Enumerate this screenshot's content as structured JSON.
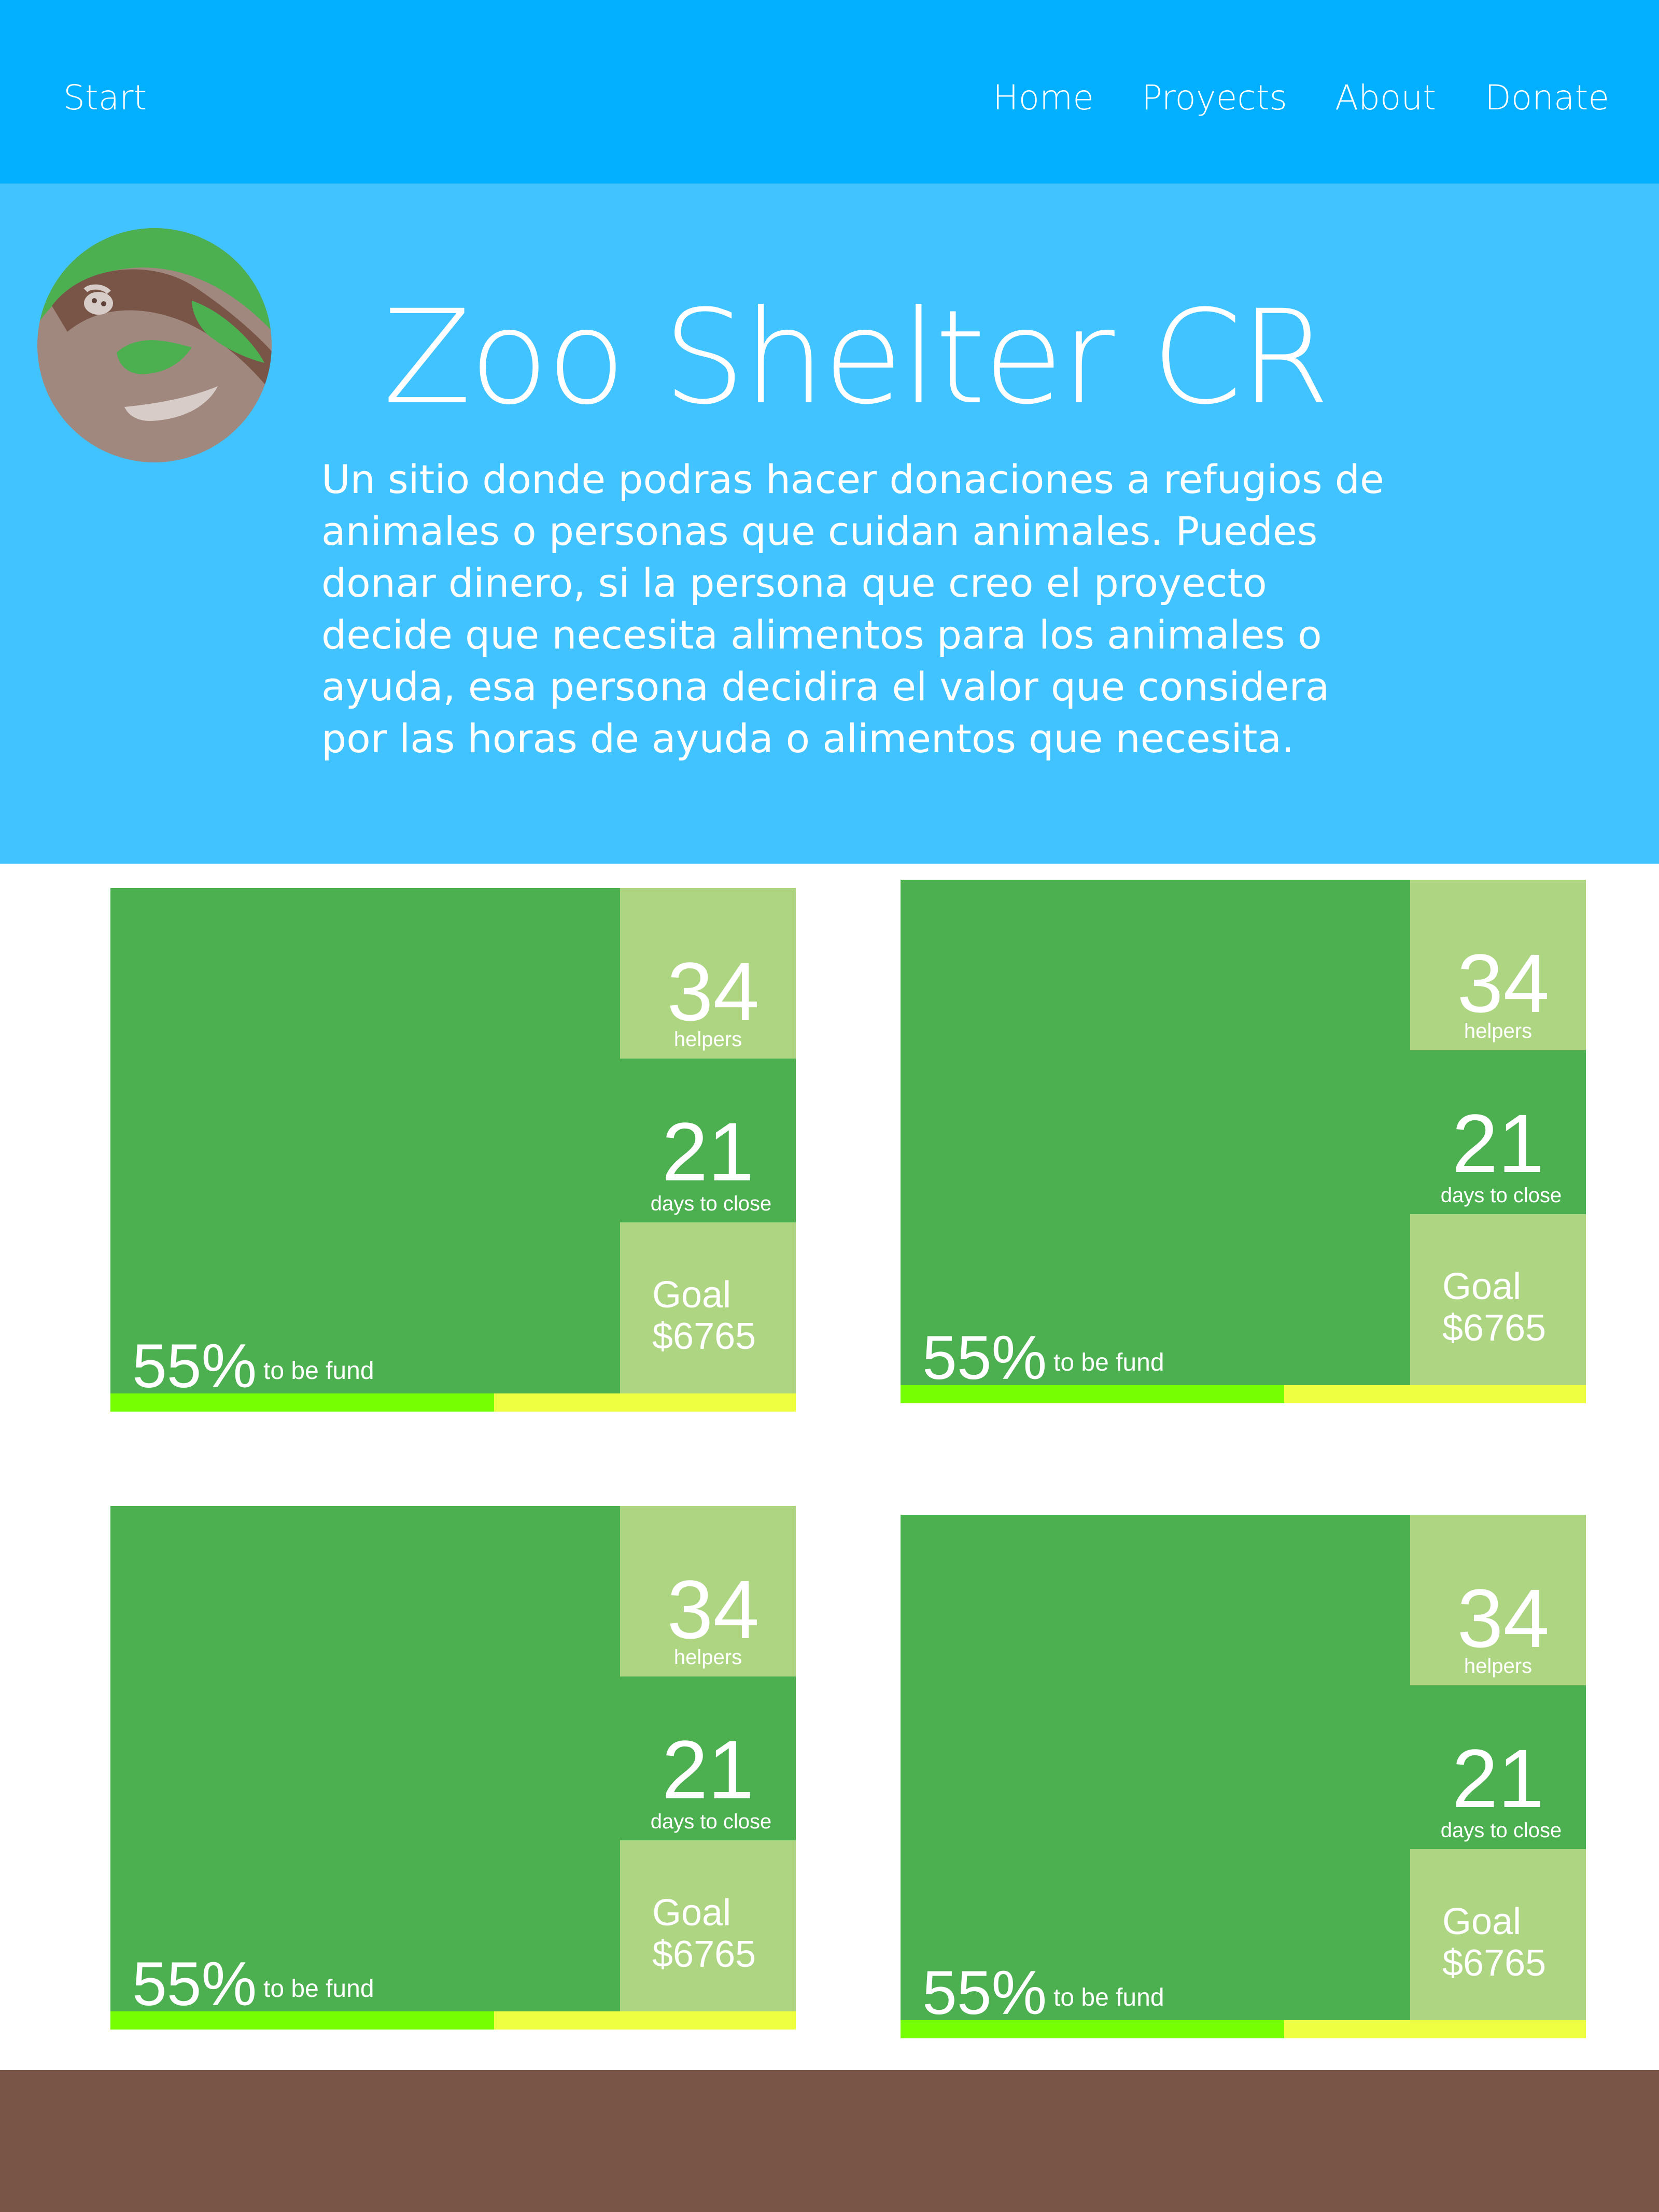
{
  "colors": {
    "navbar": "#03b0ff",
    "hero": "#40c3ff",
    "card": "#4caf50",
    "card_light": "#aed581",
    "progress_fill": "#76ff03",
    "progress_track": "#eeff41",
    "footer": "#795548"
  },
  "nav": {
    "start": "Start",
    "items": [
      "Home",
      "Proyects",
      "About",
      "Donate"
    ]
  },
  "hero": {
    "logo_icon": "sloth-logo-icon",
    "title": "Zoo Shelter CR",
    "description": "Un sitio donde podras hacer donaciones a refugios de animales o personas que cuidan animales. Puedes donar dinero, si la persona que creo el proyecto decide que necesita alimentos para los animales o ayuda, esa persona decidira el valor que considera por las horas de ayuda o alimentos que necesita."
  },
  "projects": [
    {
      "helpers": "34",
      "helpers_label": "helpers",
      "days": "21",
      "days_label": "days to close",
      "goal_label": "Goal",
      "goal": "$6765",
      "percent": "55%",
      "fund_label": "to be fund",
      "progress": 0.56
    },
    {
      "helpers": "34",
      "helpers_label": "helpers",
      "days": "21",
      "days_label": "days to close",
      "goal_label": "Goal",
      "goal": "$6765",
      "percent": "55%",
      "fund_label": "to be fund",
      "progress": 0.56
    },
    {
      "helpers": "34",
      "helpers_label": "helpers",
      "days": "21",
      "days_label": "days to close",
      "goal_label": "Goal",
      "goal": "$6765",
      "percent": "55%",
      "fund_label": "to be fund",
      "progress": 0.56
    },
    {
      "helpers": "34",
      "helpers_label": "helpers",
      "days": "21",
      "days_label": "days to close",
      "goal_label": "Goal",
      "goal": "$6765",
      "percent": "55%",
      "fund_label": "to be fund",
      "progress": 0.56
    }
  ]
}
